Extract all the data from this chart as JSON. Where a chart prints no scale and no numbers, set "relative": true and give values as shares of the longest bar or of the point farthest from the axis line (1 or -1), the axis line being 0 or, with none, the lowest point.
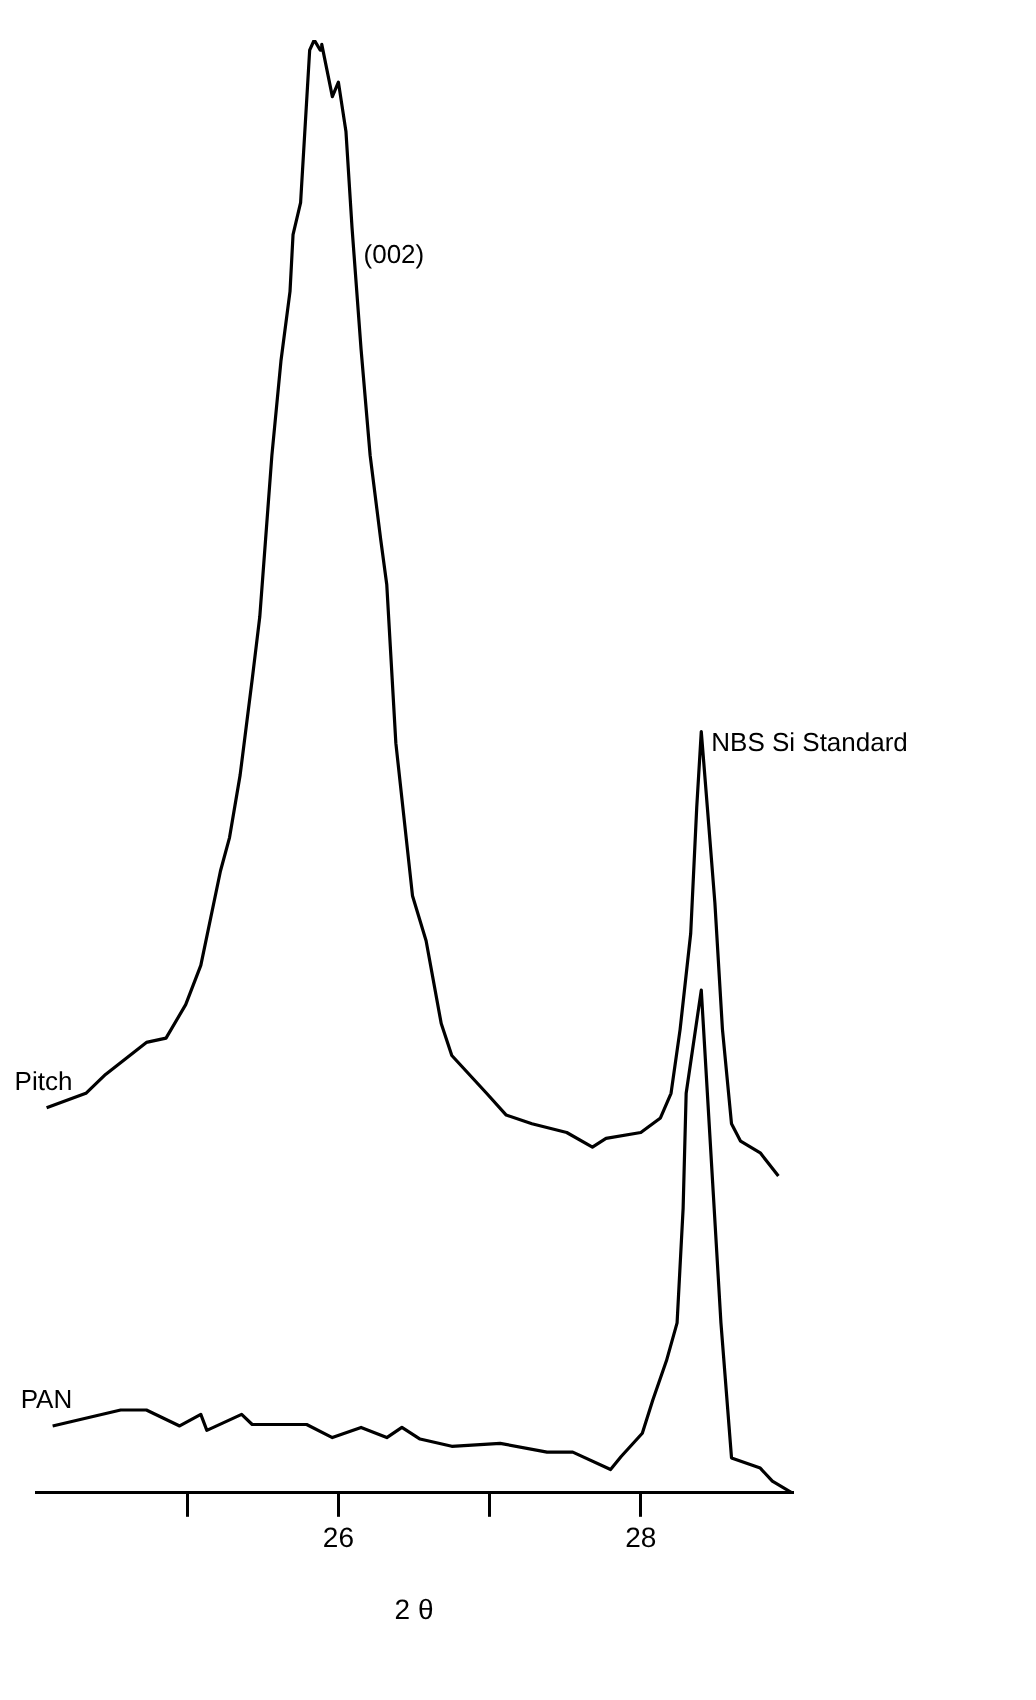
{
  "chart_data": {
    "type": "line",
    "relative": true,
    "xlabel": "2 θ",
    "xlim": [
      24,
      29
    ],
    "xticks": [
      {
        "value": 25,
        "label": null
      },
      26,
      {
        "value": 27,
        "label": null
      },
      28
    ],
    "grid": false,
    "legend": false,
    "marker": "none",
    "line_style": "solid",
    "annotations": [
      {
        "text": "(002)",
        "x": 26.1,
        "y": 0.86
      },
      {
        "text": "NBS Si Standard",
        "x": 28.4,
        "y": 0.524
      }
    ],
    "series": [
      {
        "name": "Pitch",
        "color": "#000000",
        "x": [
          24.07,
          24.33,
          24.46,
          24.73,
          24.86,
          24.99,
          25.09,
          25.22,
          25.28,
          25.35,
          25.43,
          25.48,
          25.56,
          25.62,
          25.68,
          25.7,
          25.75,
          25.81,
          25.84,
          25.88,
          25.89,
          25.96,
          26.0,
          26.05,
          26.09,
          26.15,
          26.21,
          26.28,
          26.32,
          26.38,
          26.49,
          26.58,
          26.68,
          26.75,
          26.98,
          27.11,
          27.28,
          27.51,
          27.68,
          27.77,
          28.0,
          28.13,
          28.2,
          28.26,
          28.33,
          28.37,
          28.4,
          28.44,
          28.49,
          28.54,
          28.6,
          28.66,
          28.79,
          28.91
        ],
        "values": [
          0.265,
          0.275,
          0.288,
          0.31,
          0.313,
          0.336,
          0.363,
          0.428,
          0.451,
          0.494,
          0.56,
          0.603,
          0.714,
          0.779,
          0.827,
          0.866,
          0.888,
          0.993,
          1.0,
          0.993,
          0.997,
          0.961,
          0.971,
          0.937,
          0.871,
          0.787,
          0.714,
          0.656,
          0.625,
          0.516,
          0.411,
          0.38,
          0.323,
          0.301,
          0.275,
          0.26,
          0.254,
          0.248,
          0.238,
          0.244,
          0.248,
          0.258,
          0.275,
          0.319,
          0.385,
          0.472,
          0.524,
          0.472,
          0.406,
          0.319,
          0.254,
          0.242,
          0.234,
          0.218
        ]
      },
      {
        "name": "PAN",
        "color": "#000000",
        "x": [
          24.11,
          24.56,
          24.73,
          24.95,
          25.09,
          25.13,
          25.36,
          25.43,
          25.79,
          25.96,
          26.15,
          26.32,
          26.42,
          26.54,
          26.75,
          27.07,
          27.38,
          27.55,
          27.8,
          27.87,
          28.01,
          28.08,
          28.17,
          28.24,
          28.28,
          28.3,
          28.4,
          28.48,
          28.53,
          28.6,
          28.79,
          28.87,
          29.0
        ],
        "values": [
          0.046,
          0.057,
          0.057,
          0.046,
          0.054,
          0.043,
          0.054,
          0.047,
          0.047,
          0.038,
          0.045,
          0.038,
          0.045,
          0.037,
          0.032,
          0.034,
          0.028,
          0.028,
          0.016,
          0.025,
          0.041,
          0.064,
          0.091,
          0.117,
          0.196,
          0.275,
          0.346,
          0.205,
          0.117,
          0.024,
          0.017,
          0.008,
          0.0
        ]
      }
    ]
  }
}
